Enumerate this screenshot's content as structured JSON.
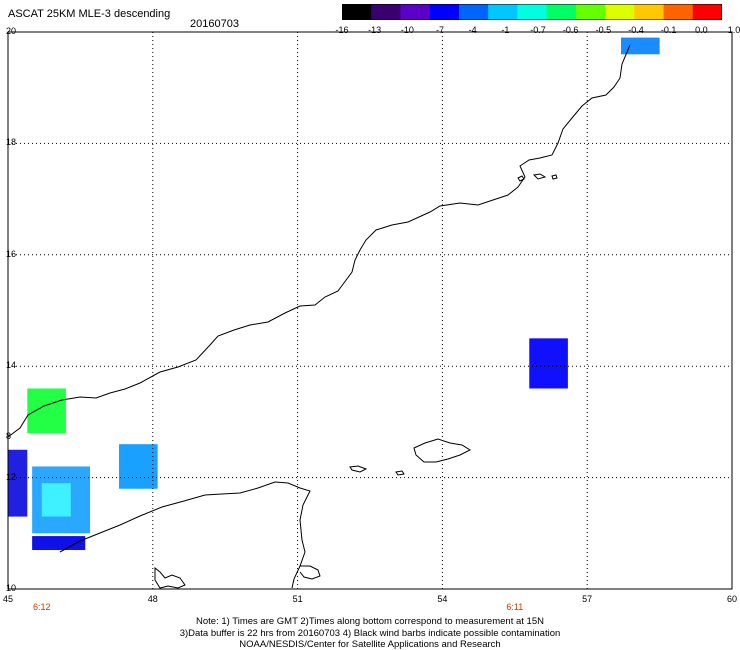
{
  "title": "ASCAT 25KM MLE-3 descending",
  "date": "20160703",
  "colorbar": {
    "labels": [
      "-16",
      "-13",
      "-10",
      "-7",
      "-4",
      "-1",
      "-0.7",
      "-0.6",
      "-0.5",
      "-0.4",
      "-0.1",
      "0.0",
      "1.0"
    ],
    "colors": [
      "#000000",
      "#3a006e",
      "#5a00c8",
      "#0000ff",
      "#0064ff",
      "#00c8ff",
      "#00ffe0",
      "#00ff64",
      "#64ff00",
      "#dcff00",
      "#ffc800",
      "#ff6400",
      "#ff0000"
    ]
  },
  "map": {
    "lat_labels": [
      {
        "text": "20",
        "value": 20
      },
      {
        "text": "18",
        "value": 18
      },
      {
        "text": "16",
        "value": 16
      },
      {
        "text": "14",
        "value": 14
      },
      {
        "text": "12",
        "value": 12
      },
      {
        "text": "10",
        "value": 10
      }
    ],
    "lon_labels": [
      {
        "text": "45",
        "value": 45
      },
      {
        "text": "48",
        "value": 48
      },
      {
        "text": "51",
        "value": 51
      },
      {
        "text": "54",
        "value": 54
      },
      {
        "text": "57",
        "value": 57
      },
      {
        "text": "60",
        "value": 60
      }
    ],
    "extra_lat_label": "8",
    "time_labels": [
      {
        "text": "6:12",
        "lon": 45.7
      },
      {
        "text": "6:11",
        "lon": 55.5
      }
    ],
    "grid_dotted": true,
    "data_cells": [
      {
        "lon": [
          45.4,
          46.2
        ],
        "lat": [
          12.8,
          13.6
        ],
        "color": "#22ff44"
      },
      {
        "lon": [
          47.3,
          48.1
        ],
        "lat": [
          11.8,
          12.6
        ],
        "color": "#1aa0ff"
      },
      {
        "lon": [
          55.8,
          56.6
        ],
        "lat": [
          13.6,
          14.5
        ],
        "color": "#1010ff"
      },
      {
        "lon": [
          57.7,
          58.5
        ],
        "lat": [
          19.6,
          19.9
        ],
        "color": "#1a8cff"
      },
      {
        "lon": [
          45.0,
          45.4
        ],
        "lat": [
          11.3,
          12.5
        ],
        "color": "#2020e0"
      },
      {
        "lon": [
          45.5,
          46.7
        ],
        "lat": [
          11.0,
          12.2
        ],
        "color": "#2aa8ff"
      },
      {
        "lon": [
          45.7,
          46.3
        ],
        "lat": [
          11.3,
          11.9
        ],
        "color": "#3ff0ff"
      },
      {
        "lon": [
          45.5,
          46.6
        ],
        "lat": [
          10.7,
          10.95
        ],
        "color": "#1010e8"
      }
    ]
  },
  "notes": {
    "line1": "Note: 1) Times are GMT 2)Times along bottom correspond to measurement at 15N",
    "line2": "3)Data buffer is 22 hrs from 20160703 4) Black wind barbs indicate possible contamination",
    "line3": "NOAA/NESDIS/Center for Satellite Applications and Research"
  }
}
